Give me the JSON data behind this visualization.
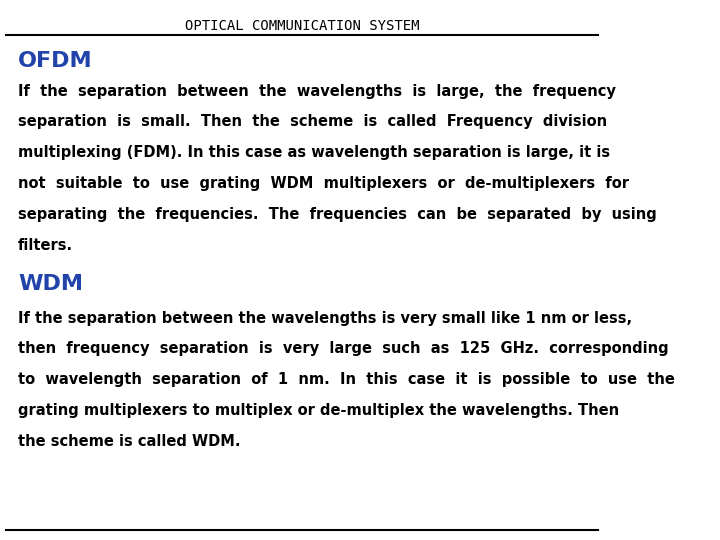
{
  "title": "OPTICAL COMMUNICATION SYSTEM",
  "title_fontsize": 10,
  "title_color": "#000000",
  "background_color": "#ffffff",
  "heading1": "OFDM",
  "heading1_color": "#2244aa",
  "heading1_fontsize": 16,
  "heading2": "WDM",
  "heading2_color": "#2244aa",
  "heading2_fontsize": 16,
  "ofdm_text": "If  the  separation  between  the  wavelengths  is  large,  the  frequency\nseparation  is  small.  Then  the  scheme  is  called  Frequency  division\nmultiplexing (FDM). In this case as wavelength separation is large, it is\nnot  suitable  to  use  grating  WDM  multiplexers  or  de-multiplexers  for\nseparating  the  frequencies.  The  frequencies  can  be  separated  by  using\nfilters.",
  "wdm_text": "If the separation between the wavelengths is very small like 1 nm or less,\nthen  frequency  separation  is  very  large  such  as  125  GHz.  corresponding\nto  wavelength  separation  of  1  nm.  In  this  case  it  is  possible  to  use  the\ngrating multiplexers to multiplex or de-multiplex the wavelengths. Then\nthe scheme is called WDM.",
  "body_fontsize": 10.5,
  "body_color": "#000000",
  "line_color": "#000000",
  "line_width": 1.5
}
